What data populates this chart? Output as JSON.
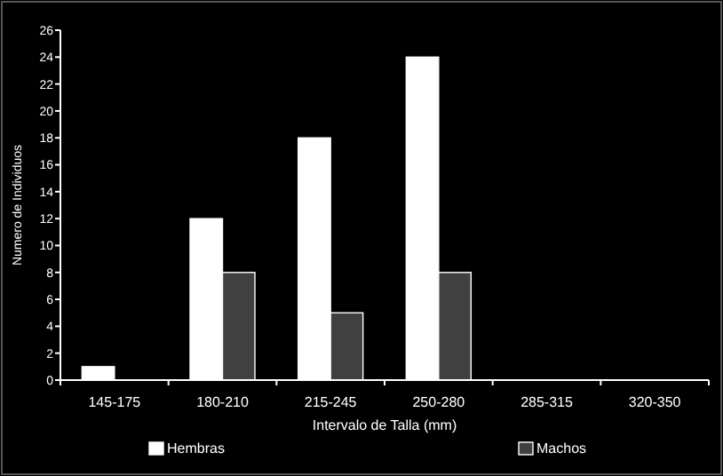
{
  "chart_data": {
    "type": "bar",
    "xlabel": "Intervalo de Talla (mm)",
    "ylabel": "Numero de Individuos",
    "categories": [
      "145-175",
      "180-210",
      "215-245",
      "250-280",
      "285-315",
      "320-350"
    ],
    "series": [
      {
        "name": "Hembras",
        "color": "#ffffff",
        "values": [
          1,
          12,
          18,
          24,
          0,
          0
        ]
      },
      {
        "name": "Machos",
        "color": "#404040",
        "values": [
          0,
          8,
          5,
          8,
          0,
          0
        ]
      }
    ],
    "ylim": [
      0,
      26
    ],
    "yticks": [
      0,
      2,
      4,
      6,
      8,
      10,
      12,
      14,
      16,
      18,
      20,
      22,
      24,
      26
    ],
    "grid": false,
    "legend": "bottom"
  }
}
